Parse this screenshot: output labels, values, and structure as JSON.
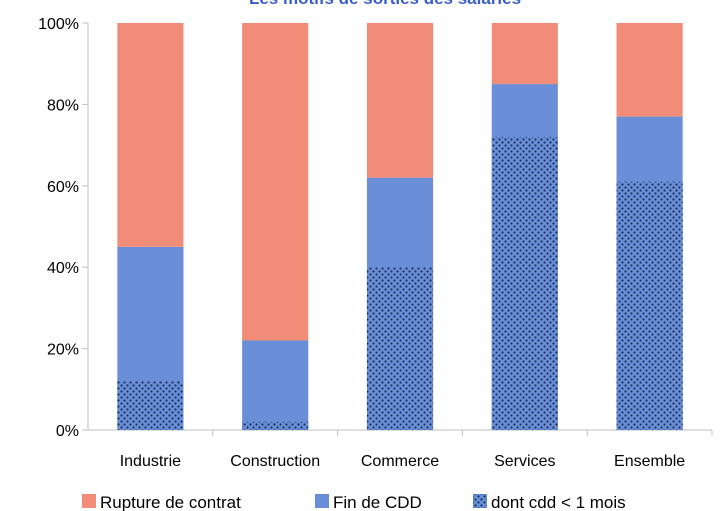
{
  "chart_data": {
    "type": "bar",
    "stacked": true,
    "title": "Les motifs de sorties des salariés",
    "categories": [
      "Industrie",
      "Construction",
      "Commerce",
      "Services",
      "Ensemble"
    ],
    "series": [
      {
        "name": "Fin de CDD",
        "values": [
          45,
          22,
          62,
          85,
          77
        ],
        "color": "#6a8fd8"
      },
      {
        "name": "Rupture de contrat",
        "values": [
          55,
          78,
          38,
          15,
          23
        ],
        "color": "#f08c78"
      }
    ],
    "sub_series": {
      "name": "dont cdd < 1 mois",
      "parent": "Fin de CDD",
      "values": [
        12,
        2,
        40,
        72,
        61
      ],
      "pattern": "dotted"
    },
    "ylim": [
      0,
      100
    ],
    "yticks": [
      "0%",
      "20%",
      "40%",
      "60%",
      "80%",
      "100%"
    ],
    "legend_position": "bottom",
    "legend": [
      "Rupture de contrat",
      "Fin de CDD",
      "dont cdd < 1 mois"
    ]
  }
}
